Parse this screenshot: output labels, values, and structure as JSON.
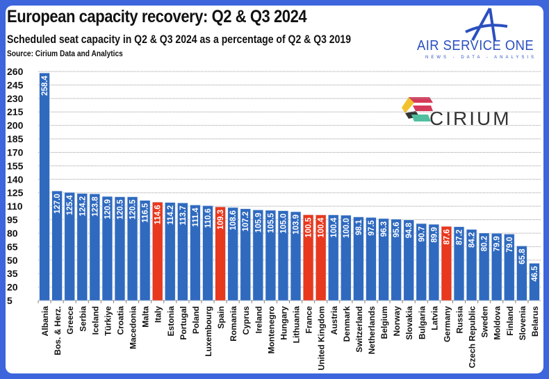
{
  "header": {
    "title": "European capacity recovery: Q2 & Q3 2024",
    "subtitle": "Scheduled seat capacity in Q2 & Q3 2024 as a percentage of Q2 & Q3 2019",
    "source": "Source: Cirium Data and Analytics"
  },
  "logos": {
    "air_service_one": "AIR SERVICE ONE",
    "air_service_one_tagline": "NEWS - DATA - ANALYSIS",
    "cirium": "CIRIUM"
  },
  "colors": {
    "border": "#3d66dd",
    "bar": "#2f6abf",
    "highlight": "#e8381e"
  },
  "chart_data": {
    "type": "bar",
    "title": "European capacity recovery: Q2 & Q3 2024",
    "xlabel": "",
    "ylabel": "",
    "ylim": [
      5,
      260
    ],
    "yticks": [
      5,
      20,
      35,
      50,
      65,
      80,
      95,
      110,
      125,
      140,
      155,
      170,
      185,
      200,
      215,
      230,
      245,
      260
    ],
    "grid": true,
    "data_labels": true,
    "categories": [
      "Albania",
      "Bos. & Herz.",
      "Greece",
      "Serbia",
      "Iceland",
      "Türkiye",
      "Croatia",
      "Macedonia",
      "Malta",
      "Italy",
      "Estonia",
      "Portugal",
      "Poland",
      "Luxembourg",
      "Spain",
      "Romania",
      "Cyprus",
      "Ireland",
      "Montenegro",
      "Hungary",
      "Lithuania",
      "France",
      "United Kingdom",
      "Austria",
      "Denmark",
      "Switzerland",
      "Netherlands",
      "Belgium",
      "Norway",
      "Slovakia",
      "Bulgaria",
      "Latvia",
      "Germany",
      "Russia",
      "Czech Republic",
      "Sweden",
      "Moldova",
      "Finland",
      "Slovenia",
      "Belarus"
    ],
    "values": [
      258.4,
      127.0,
      125.4,
      124.2,
      123.8,
      120.9,
      120.5,
      120.5,
      116.5,
      114.6,
      114.2,
      113.7,
      111.4,
      110.6,
      109.3,
      108.6,
      107.2,
      105.9,
      105.5,
      105.0,
      103.9,
      100.5,
      100.4,
      100.4,
      100.0,
      98.1,
      97.5,
      96.3,
      95.6,
      94.8,
      90.7,
      89.9,
      87.6,
      87.2,
      84.2,
      80.2,
      79.9,
      79.0,
      65.8,
      46.5
    ],
    "labels": [
      "258.4",
      "127.0",
      "125.4",
      "124.2",
      "123.8",
      "120.9",
      "120.5",
      "120.5",
      "116.5",
      "114.6",
      "114.2",
      "113.7",
      "111.4",
      "110.6",
      "109.3",
      "108.6",
      "107.2",
      "105.9",
      "105.5",
      "105.0",
      "103.9",
      "100.5",
      "100.4",
      "100.4",
      "100.0",
      "98.1",
      "97.5",
      "96.3",
      "95.6",
      "94.8",
      "90.7",
      "89.9",
      "87.6",
      "87.2",
      "84.2",
      "80.2",
      "79.9",
      "79.0",
      "65.8",
      "46.5"
    ],
    "highlighted": [
      "Italy",
      "Spain",
      "France",
      "United Kingdom",
      "Germany"
    ]
  }
}
